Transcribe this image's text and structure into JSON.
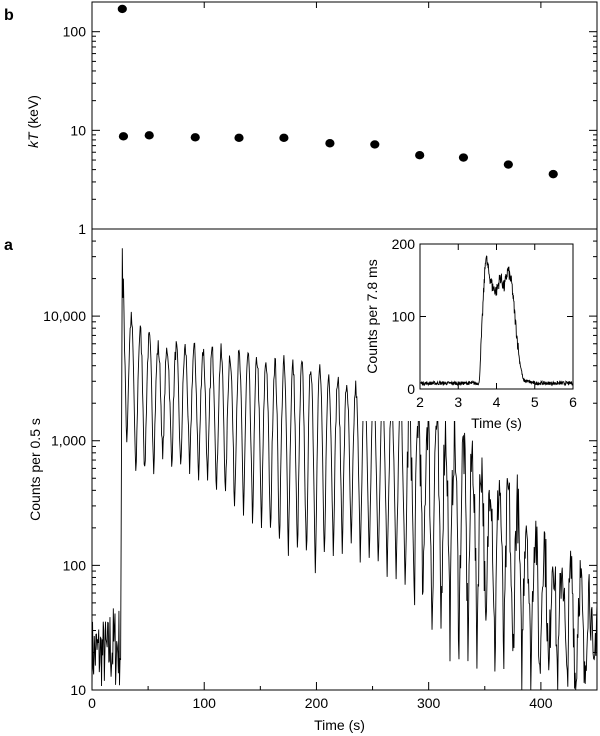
{
  "chart_data": [
    {
      "panel": "b",
      "type": "scatter",
      "xlabel": "",
      "ylabel_italic": "kT",
      "ylabel_rest": " (keV)",
      "yscale": "log",
      "ylim": [
        1,
        200
      ],
      "xlim": [
        0,
        450
      ],
      "yticks": [
        {
          "value": 1,
          "label": "1"
        },
        {
          "value": 10,
          "label": "10"
        },
        {
          "value": 100,
          "label": "100"
        }
      ],
      "points": [
        {
          "x": 27,
          "y": 170
        },
        {
          "x": 28,
          "y": 8.7
        },
        {
          "x": 51,
          "y": 8.9
        },
        {
          "x": 92,
          "y": 8.5
        },
        {
          "x": 131,
          "y": 8.4
        },
        {
          "x": 171,
          "y": 8.4
        },
        {
          "x": 212,
          "y": 7.4
        },
        {
          "x": 252,
          "y": 7.2
        },
        {
          "x": 292,
          "y": 5.6
        },
        {
          "x": 331,
          "y": 5.3
        },
        {
          "x": 371,
          "y": 4.5
        },
        {
          "x": 411,
          "y": 3.6
        }
      ]
    },
    {
      "panel": "a",
      "type": "line",
      "xlabel": "Time (s)",
      "ylabel": "Counts per 0.5 s",
      "yscale": "log",
      "ylim": [
        10,
        50000
      ],
      "xlim": [
        0,
        450
      ],
      "xticks": [
        {
          "value": 0,
          "label": "0"
        },
        {
          "value": 100,
          "label": "100"
        },
        {
          "value": 200,
          "label": "200"
        },
        {
          "value": 300,
          "label": "300"
        },
        {
          "value": 400,
          "label": "400"
        }
      ],
      "yticks": [
        {
          "value": 10,
          "label": "10"
        },
        {
          "value": 100,
          "label": "100"
        },
        {
          "value": 1000,
          "label": "1,000"
        },
        {
          "value": 10000,
          "label": "10,000"
        }
      ],
      "burst_peak": {
        "x": 27,
        "y": 35000
      },
      "oscillation_period_s": 8,
      "pulse_envelope": [
        {
          "x": 30,
          "max": 11000,
          "min": 1100
        },
        {
          "x": 40,
          "max": 8000,
          "min": 450
        },
        {
          "x": 60,
          "max": 5500,
          "min": 700
        },
        {
          "x": 90,
          "max": 5500,
          "min": 500
        },
        {
          "x": 120,
          "max": 5000,
          "min": 350
        },
        {
          "x": 150,
          "max": 4500,
          "min": 200
        },
        {
          "x": 180,
          "max": 4000,
          "min": 130
        },
        {
          "x": 200,
          "max": 4000,
          "min": 100
        },
        {
          "x": 220,
          "max": 3000,
          "min": 150
        },
        {
          "x": 260,
          "max": 2200,
          "min": 100
        },
        {
          "x": 300,
          "max": 1500,
          "min": 40
        },
        {
          "x": 340,
          "max": 800,
          "min": 25
        },
        {
          "x": 380,
          "max": 300,
          "min": 15
        },
        {
          "x": 420,
          "max": 100,
          "min": 10
        },
        {
          "x": 450,
          "max": 60,
          "min": 10
        }
      ],
      "pre_burst_level": {
        "max": 50,
        "min": 10
      }
    },
    {
      "panel": "inset",
      "type": "line",
      "xlabel": "Time (s)",
      "ylabel": "Counts per 7.8 ms",
      "xlim": [
        2,
        6
      ],
      "ylim": [
        0,
        200
      ],
      "xticks": [
        {
          "value": 2,
          "label": "2"
        },
        {
          "value": 3,
          "label": "3"
        },
        {
          "value": 4,
          "label": "4"
        },
        {
          "value": 5,
          "label": "5"
        },
        {
          "value": 6,
          "label": "6"
        }
      ],
      "yticks": [
        {
          "value": 0,
          "label": "0"
        },
        {
          "value": 100,
          "label": "100"
        },
        {
          "value": 200,
          "label": "200"
        }
      ],
      "profile": [
        {
          "x": 2.0,
          "y": 8
        },
        {
          "x": 3.55,
          "y": 8
        },
        {
          "x": 3.65,
          "y": 120
        },
        {
          "x": 3.72,
          "y": 185
        },
        {
          "x": 3.8,
          "y": 160
        },
        {
          "x": 3.9,
          "y": 140
        },
        {
          "x": 4.0,
          "y": 135
        },
        {
          "x": 4.1,
          "y": 155
        },
        {
          "x": 4.2,
          "y": 140
        },
        {
          "x": 4.3,
          "y": 165
        },
        {
          "x": 4.4,
          "y": 145
        },
        {
          "x": 4.5,
          "y": 90
        },
        {
          "x": 4.6,
          "y": 40
        },
        {
          "x": 4.7,
          "y": 12
        },
        {
          "x": 5.0,
          "y": 8
        },
        {
          "x": 6.0,
          "y": 8
        }
      ]
    }
  ]
}
